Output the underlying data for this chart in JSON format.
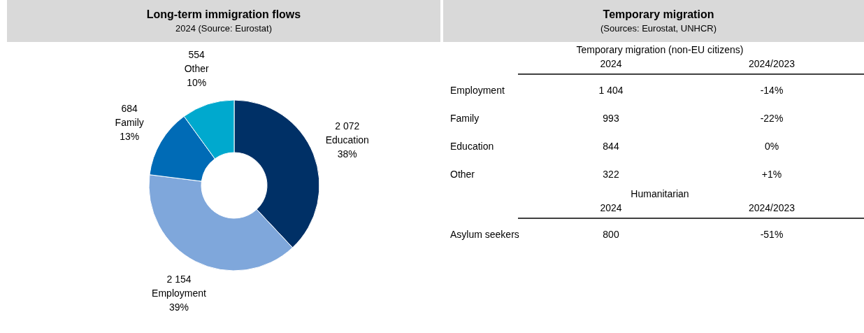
{
  "chart_data": [
    {
      "type": "donut",
      "title": "Long-term immigration flows",
      "subtitle": "2024 (Source: Eurostat)",
      "categories": [
        "Education",
        "Employment",
        "Family",
        "Other"
      ],
      "values": [
        38,
        39,
        13,
        10
      ],
      "colors": [
        "#003066",
        "#7fa7db",
        "#006bb6",
        "#00a9ce"
      ],
      "value_labels": [
        "2 072\n38%",
        "2 154\n39%",
        "684\n13%",
        "554\n10%"
      ],
      "legend": false
    },
    {
      "type": "other",
      "title": "Temporary migration",
      "subtitle": "(Sources: Eurostat, UNHCR)",
      "annotations": [
        "Temporary migration (non-EU citizens)",
        "2024",
        "2024/2023",
        "Employment",
        "1 404",
        "-14%",
        "Family",
        "993",
        "-22%",
        "Education",
        "844",
        "0%",
        "Other",
        "322",
        "+1%",
        "Humanitarian",
        "2024",
        "2024/2023",
        "Asylum seekers",
        "800",
        "-51%"
      ]
    }
  ]
}
